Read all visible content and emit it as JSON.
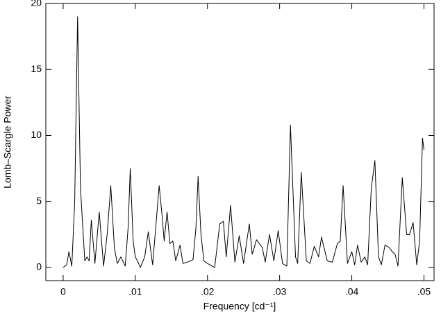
{
  "chart_data": {
    "type": "line",
    "xlabel": "Frequency [cd⁻¹]",
    "ylabel": "Lomb–Scargle Power",
    "xlim": [
      -0.0024,
      0.0514
    ],
    "ylim": [
      -1,
      20
    ],
    "xticks": [
      0,
      {
        "value": 0.01,
        "label": ".01"
      },
      {
        "value": 0.02,
        "label": ".02"
      },
      {
        "value": 0.03,
        "label": ".03"
      },
      {
        "value": 0.04,
        "label": ".04"
      },
      {
        "value": 0.05,
        "label": ".05"
      }
    ],
    "yticks": [
      0,
      5,
      10,
      15,
      20
    ],
    "series": [
      {
        "color": "#000000",
        "x": [
          0,
          0.0005,
          0.0008,
          0.0012,
          0.0016,
          0.002,
          0.0024,
          0.003,
          0.0033,
          0.0036,
          0.0039,
          0.0044,
          0.005,
          0.0056,
          0.0061,
          0.0066,
          0.0071,
          0.0075,
          0.008,
          0.0086,
          0.009,
          0.0093,
          0.0097,
          0.01,
          0.0103,
          0.0107,
          0.0113,
          0.0118,
          0.0124,
          0.0129,
          0.0133,
          0.0137,
          0.014,
          0.0144,
          0.0148,
          0.0152,
          0.0156,
          0.0162,
          0.0166,
          0.0172,
          0.018,
          0.0184,
          0.0187,
          0.0191,
          0.0195,
          0.02,
          0.021,
          0.0217,
          0.0222,
          0.0226,
          0.0232,
          0.0238,
          0.0244,
          0.025,
          0.0258,
          0.0262,
          0.0268,
          0.0276,
          0.028,
          0.0286,
          0.0292,
          0.0298,
          0.0304,
          0.031,
          0.0315,
          0.0322,
          0.0325,
          0.033,
          0.0337,
          0.0342,
          0.0348,
          0.0354,
          0.0358,
          0.0366,
          0.0373,
          0.038,
          0.0384,
          0.0388,
          0.0394,
          0.04,
          0.0404,
          0.0408,
          0.0413,
          0.0418,
          0.0422,
          0.0427,
          0.0432,
          0.0437,
          0.0441,
          0.0446,
          0.0452,
          0.0456,
          0.046,
          0.0464,
          0.047,
          0.0476,
          0.048,
          0.0485,
          0.049,
          0.0494,
          0.0498,
          0.05
        ],
        "values": [
          0,
          0.2,
          1.2,
          0.1,
          5,
          19,
          6,
          0.5,
          0.8,
          0.5,
          3.6,
          0.3,
          4.2,
          0.1,
          2.5,
          6.2,
          1.5,
          0.3,
          0.8,
          0.1,
          3,
          7.5,
          2,
          0.8,
          0.5,
          0,
          0.8,
          2.7,
          0.2,
          3.5,
          6.2,
          4,
          2,
          4.2,
          1.8,
          2,
          0.5,
          1.7,
          0.3,
          0.4,
          0.6,
          3,
          6.9,
          2.5,
          0.5,
          0.3,
          0,
          3.3,
          3.5,
          0.8,
          4.7,
          0.4,
          2.4,
          0.3,
          3.3,
          1,
          2.1,
          1.5,
          0.4,
          2.5,
          0.5,
          2.8,
          0.3,
          0.1,
          10.8,
          0.8,
          0.3,
          7.2,
          0.5,
          0.3,
          1.6,
          0.8,
          2.3,
          0.5,
          0.4,
          1.8,
          2,
          6.2,
          0.3,
          1.2,
          0.2,
          1.7,
          0.4,
          0.8,
          0.2,
          6,
          8.1,
          0.8,
          0.2,
          1.7,
          1.5,
          1.2,
          1,
          0.1,
          6.8,
          2.5,
          2.5,
          3.4,
          0.2,
          2,
          9.8,
          8.9
        ]
      }
    ]
  }
}
